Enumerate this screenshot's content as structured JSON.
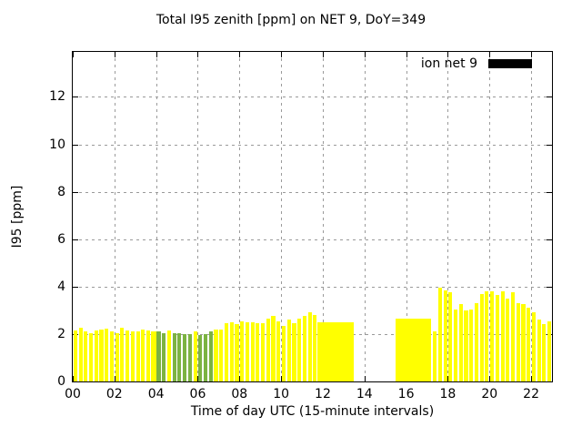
{
  "window": {
    "background": "#ffffff"
  },
  "chart_data": {
    "type": "bar",
    "title": "Total I95 zenith [ppm] on NET 9, DoY=349",
    "xlabel": "Time of day UTC (15-minute intervals)",
    "ylabel": "I95 [ppm]",
    "xlim": [
      0,
      23
    ],
    "ylim": [
      0,
      13.9
    ],
    "grid": true,
    "bar_interval_minutes": 15,
    "legend": {
      "label": "ion net 9",
      "swatch_color": "#000000",
      "position": "top-right-inside"
    },
    "colors": {
      "yellow": "#ffff00",
      "green": "#7cb342",
      "grid": "#9a9a9a",
      "axis": "#000000"
    },
    "x_ticks": [
      {
        "v": 0,
        "label": "00"
      },
      {
        "v": 2,
        "label": "02"
      },
      {
        "v": 4,
        "label": "04"
      },
      {
        "v": 6,
        "label": "06"
      },
      {
        "v": 8,
        "label": "08"
      },
      {
        "v": 10,
        "label": "10"
      },
      {
        "v": 12,
        "label": "12"
      },
      {
        "v": 14,
        "label": "14"
      },
      {
        "v": 16,
        "label": "16"
      },
      {
        "v": 18,
        "label": "18"
      },
      {
        "v": 20,
        "label": "20"
      },
      {
        "v": 22,
        "label": "22"
      }
    ],
    "y_ticks": [
      {
        "v": 0,
        "label": "0"
      },
      {
        "v": 2,
        "label": "2"
      },
      {
        "v": 4,
        "label": "4"
      },
      {
        "v": 6,
        "label": "6"
      },
      {
        "v": 8,
        "label": "8"
      },
      {
        "v": 10,
        "label": "10"
      },
      {
        "v": 12,
        "label": "12"
      }
    ],
    "bars": [
      {
        "t": "00:00",
        "v": 2.15,
        "c": "yellow"
      },
      {
        "t": "00:15",
        "v": 2.25,
        "c": "yellow"
      },
      {
        "t": "00:30",
        "v": 2.1,
        "c": "yellow"
      },
      {
        "t": "00:45",
        "v": 2.05,
        "c": "yellow"
      },
      {
        "t": "01:00",
        "v": 2.15,
        "c": "yellow"
      },
      {
        "t": "01:15",
        "v": 2.2,
        "c": "yellow"
      },
      {
        "t": "01:30",
        "v": 2.22,
        "c": "yellow"
      },
      {
        "t": "01:45",
        "v": 2.1,
        "c": "yellow"
      },
      {
        "t": "02:00",
        "v": 2.05,
        "c": "yellow"
      },
      {
        "t": "02:15",
        "v": 2.25,
        "c": "yellow"
      },
      {
        "t": "02:30",
        "v": 2.15,
        "c": "yellow"
      },
      {
        "t": "02:45",
        "v": 2.1,
        "c": "yellow"
      },
      {
        "t": "03:00",
        "v": 2.12,
        "c": "yellow"
      },
      {
        "t": "03:15",
        "v": 2.2,
        "c": "yellow"
      },
      {
        "t": "03:30",
        "v": 2.15,
        "c": "yellow"
      },
      {
        "t": "03:45",
        "v": 2.1,
        "c": "yellow"
      },
      {
        "t": "04:00",
        "v": 2.1,
        "c": "green"
      },
      {
        "t": "04:15",
        "v": 2.05,
        "c": "green"
      },
      {
        "t": "04:30",
        "v": 2.15,
        "c": "yellow"
      },
      {
        "t": "04:45",
        "v": 2.05,
        "c": "green"
      },
      {
        "t": "05:00",
        "v": 2.03,
        "c": "green"
      },
      {
        "t": "05:15",
        "v": 2.0,
        "c": "green"
      },
      {
        "t": "05:30",
        "v": 1.98,
        "c": "green"
      },
      {
        "t": "05:45",
        "v": 2.1,
        "c": "yellow"
      },
      {
        "t": "06:00",
        "v": 1.95,
        "c": "green"
      },
      {
        "t": "06:15",
        "v": 2.0,
        "c": "green"
      },
      {
        "t": "06:30",
        "v": 2.1,
        "c": "green"
      },
      {
        "t": "06:45",
        "v": 2.2,
        "c": "yellow"
      },
      {
        "t": "07:00",
        "v": 2.18,
        "c": "yellow"
      },
      {
        "t": "07:15",
        "v": 2.45,
        "c": "yellow"
      },
      {
        "t": "07:30",
        "v": 2.5,
        "c": "yellow"
      },
      {
        "t": "07:45",
        "v": 2.4,
        "c": "yellow"
      },
      {
        "t": "08:00",
        "v": 2.55,
        "c": "yellow"
      },
      {
        "t": "08:15",
        "v": 2.5,
        "c": "yellow"
      },
      {
        "t": "08:30",
        "v": 2.48,
        "c": "yellow"
      },
      {
        "t": "08:45",
        "v": 2.45,
        "c": "yellow"
      },
      {
        "t": "09:00",
        "v": 2.44,
        "c": "yellow"
      },
      {
        "t": "09:15",
        "v": 2.65,
        "c": "yellow"
      },
      {
        "t": "09:30",
        "v": 2.75,
        "c": "yellow"
      },
      {
        "t": "09:45",
        "v": 2.52,
        "c": "yellow"
      },
      {
        "t": "10:00",
        "v": 2.35,
        "c": "yellow"
      },
      {
        "t": "10:15",
        "v": 2.6,
        "c": "yellow"
      },
      {
        "t": "10:30",
        "v": 2.45,
        "c": "yellow"
      },
      {
        "t": "10:45",
        "v": 2.65,
        "c": "yellow"
      },
      {
        "t": "11:00",
        "v": 2.75,
        "c": "yellow"
      },
      {
        "t": "11:15",
        "v": 2.9,
        "c": "yellow"
      },
      {
        "t": "11:30",
        "v": 2.8,
        "c": "yellow"
      },
      {
        "t": "11:45",
        "v": 2.5,
        "c": "yellow"
      },
      {
        "t": "12:00",
        "v": 2.5,
        "c": "yellow"
      },
      {
        "t": "12:15",
        "v": 2.5,
        "c": "yellow"
      },
      {
        "t": "12:30",
        "v": 2.5,
        "c": "yellow"
      },
      {
        "t": "12:45",
        "v": 2.5,
        "c": "yellow"
      },
      {
        "t": "13:00",
        "v": 2.5,
        "c": "yellow"
      },
      {
        "t": "13:15",
        "v": 2.5,
        "c": "yellow"
      },
      {
        "t": "15:30",
        "v": 2.65,
        "c": "yellow"
      },
      {
        "t": "15:45",
        "v": 2.65,
        "c": "yellow"
      },
      {
        "t": "16:00",
        "v": 2.65,
        "c": "yellow"
      },
      {
        "t": "16:15",
        "v": 2.65,
        "c": "yellow"
      },
      {
        "t": "16:30",
        "v": 2.65,
        "c": "yellow"
      },
      {
        "t": "16:45",
        "v": 2.65,
        "c": "yellow"
      },
      {
        "t": "17:00",
        "v": 2.65,
        "c": "yellow"
      },
      {
        "t": "17:15",
        "v": 2.1,
        "c": "yellow"
      },
      {
        "t": "17:30",
        "v": 3.95,
        "c": "yellow"
      },
      {
        "t": "17:45",
        "v": 3.85,
        "c": "yellow"
      },
      {
        "t": "18:00",
        "v": 3.75,
        "c": "yellow"
      },
      {
        "t": "18:15",
        "v": 3.05,
        "c": "yellow"
      },
      {
        "t": "18:30",
        "v": 3.25,
        "c": "yellow"
      },
      {
        "t": "18:45",
        "v": 3.0,
        "c": "yellow"
      },
      {
        "t": "19:00",
        "v": 3.02,
        "c": "yellow"
      },
      {
        "t": "19:15",
        "v": 3.3,
        "c": "yellow"
      },
      {
        "t": "19:30",
        "v": 3.7,
        "c": "yellow"
      },
      {
        "t": "19:45",
        "v": 3.8,
        "c": "yellow"
      },
      {
        "t": "20:00",
        "v": 3.82,
        "c": "yellow"
      },
      {
        "t": "20:15",
        "v": 3.65,
        "c": "yellow"
      },
      {
        "t": "20:30",
        "v": 3.8,
        "c": "yellow"
      },
      {
        "t": "20:45",
        "v": 3.5,
        "c": "yellow"
      },
      {
        "t": "21:00",
        "v": 3.75,
        "c": "yellow"
      },
      {
        "t": "21:15",
        "v": 3.3,
        "c": "yellow"
      },
      {
        "t": "21:30",
        "v": 3.25,
        "c": "yellow"
      },
      {
        "t": "21:45",
        "v": 3.1,
        "c": "yellow"
      },
      {
        "t": "22:00",
        "v": 2.9,
        "c": "yellow"
      },
      {
        "t": "22:15",
        "v": 2.6,
        "c": "yellow"
      },
      {
        "t": "22:30",
        "v": 2.4,
        "c": "yellow"
      },
      {
        "t": "22:45",
        "v": 2.55,
        "c": "yellow"
      }
    ]
  }
}
